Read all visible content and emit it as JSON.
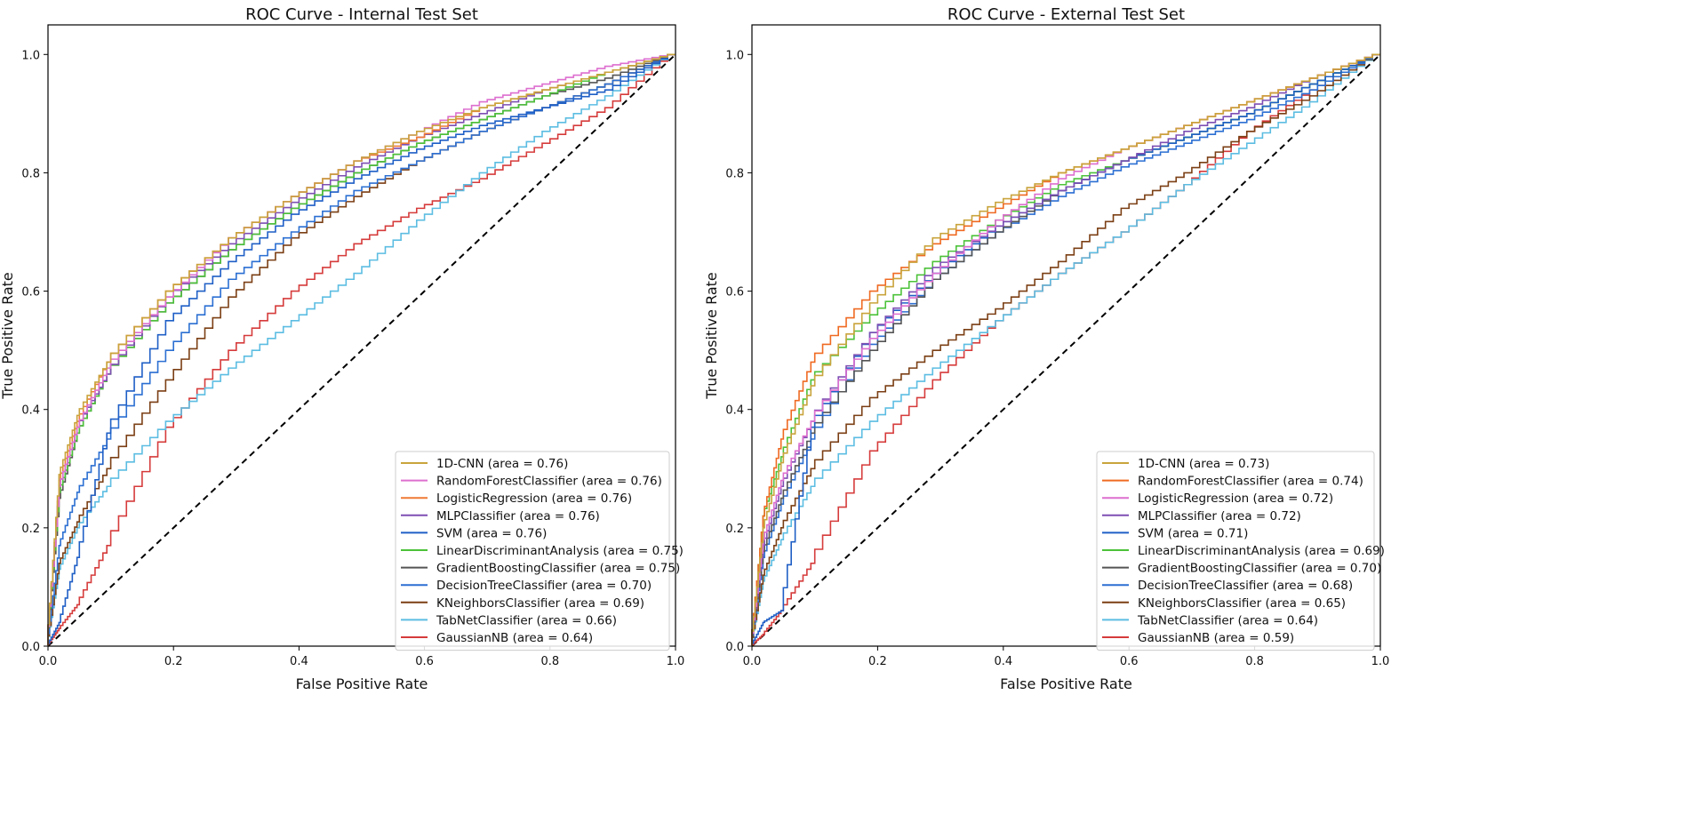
{
  "chart_data": [
    {
      "type": "line",
      "title": "ROC Curve - Internal Test Set",
      "xlabel": "False Positive Rate",
      "ylabel": "True Positive Rate",
      "xlim": [
        0,
        1
      ],
      "ylim": [
        0,
        1.05
      ],
      "xticks": [
        "0.0",
        "0.2",
        "0.4",
        "0.6",
        "0.8",
        "1.0"
      ],
      "yticks": [
        "0.0",
        "0.2",
        "0.4",
        "0.6",
        "0.8",
        "1.0"
      ],
      "legend_position": "lower-right",
      "x": [
        0,
        0.02,
        0.05,
        0.1,
        0.2,
        0.3,
        0.4,
        0.5,
        0.6,
        0.7,
        0.8,
        0.9,
        1
      ],
      "series": [
        {
          "name": "1D-CNN (area = 0.76)",
          "color": "#c9a43c",
          "values": [
            0,
            0.29,
            0.39,
            0.48,
            0.6,
            0.69,
            0.76,
            0.82,
            0.87,
            0.91,
            0.94,
            0.97,
            1
          ]
        },
        {
          "name": "RandomForestClassifier (area = 0.76)",
          "color": "#dd6fcf",
          "values": [
            0,
            0.27,
            0.37,
            0.47,
            0.59,
            0.69,
            0.76,
            0.82,
            0.87,
            0.92,
            0.95,
            0.98,
            1
          ]
        },
        {
          "name": "LogisticRegression (area = 0.76)",
          "color": "#ef7a35",
          "values": [
            0,
            0.28,
            0.38,
            0.48,
            0.6,
            0.69,
            0.76,
            0.82,
            0.86,
            0.91,
            0.94,
            0.97,
            1
          ]
        },
        {
          "name": "MLPClassifier (area = 0.76)",
          "color": "#7d4fb3",
          "values": [
            0,
            0.27,
            0.37,
            0.46,
            0.59,
            0.68,
            0.75,
            0.81,
            0.86,
            0.9,
            0.94,
            0.97,
            1
          ]
        },
        {
          "name": "SVM (area = 0.76)",
          "color": "#1f5fc6",
          "values": [
            0,
            0.04,
            0.15,
            0.36,
            0.55,
            0.65,
            0.73,
            0.79,
            0.84,
            0.88,
            0.91,
            0.94,
            1
          ]
        },
        {
          "name": "LinearDiscriminantAnalysis (area = 0.75)",
          "color": "#4cc23a",
          "values": [
            0,
            0.26,
            0.36,
            0.46,
            0.58,
            0.67,
            0.74,
            0.8,
            0.85,
            0.89,
            0.93,
            0.97,
            1
          ]
        },
        {
          "name": "GradientBoostingClassifier (area = 0.75)",
          "color": "#555555",
          "values": [
            0,
            0.25,
            0.36,
            0.46,
            0.58,
            0.67,
            0.74,
            0.8,
            0.85,
            0.89,
            0.93,
            0.96,
            1
          ]
        },
        {
          "name": "DecisionTreeClassifier (area = 0.70)",
          "color": "#2b6fd2",
          "values": [
            0,
            0.17,
            0.26,
            0.35,
            0.5,
            0.62,
            0.7,
            0.77,
            0.82,
            0.87,
            0.91,
            0.95,
            1
          ]
        },
        {
          "name": "KNeighborsClassifier (area = 0.69)",
          "color": "#7b3f14",
          "values": [
            0,
            0.14,
            0.21,
            0.3,
            0.45,
            0.59,
            0.69,
            0.76,
            0.82,
            0.87,
            0.91,
            0.95,
            1
          ]
        },
        {
          "name": "TabNetClassifier (area = 0.66)",
          "color": "#5cbde2",
          "values": [
            0,
            0.13,
            0.2,
            0.27,
            0.38,
            0.47,
            0.55,
            0.63,
            0.72,
            0.8,
            0.87,
            0.93,
            1
          ]
        },
        {
          "name": "GaussianNB (area = 0.64)",
          "color": "#d63b3b",
          "values": [
            0,
            0.03,
            0.07,
            0.17,
            0.37,
            0.5,
            0.6,
            0.68,
            0.74,
            0.79,
            0.85,
            0.91,
            1
          ]
        }
      ]
    },
    {
      "type": "line",
      "title": "ROC Curve - External Test Set",
      "xlabel": "False Positive Rate",
      "ylabel": "True Positive Rate",
      "xlim": [
        0,
        1
      ],
      "ylim": [
        0,
        1.05
      ],
      "xticks": [
        "0.0",
        "0.2",
        "0.4",
        "0.6",
        "0.8",
        "1.0"
      ],
      "yticks": [
        "0.0",
        "0.2",
        "0.4",
        "0.6",
        "0.8",
        "1.0"
      ],
      "legend_position": "lower-right",
      "x": [
        0,
        0.02,
        0.05,
        0.1,
        0.2,
        0.3,
        0.4,
        0.5,
        0.6,
        0.7,
        0.8,
        0.9,
        1
      ],
      "series": [
        {
          "name": "1D-CNN (area = 0.73)",
          "color": "#c9a43c",
          "values": [
            0,
            0.2,
            0.31,
            0.44,
            0.58,
            0.69,
            0.75,
            0.8,
            0.84,
            0.88,
            0.92,
            0.96,
            1
          ]
        },
        {
          "name": "RandomForestClassifier (area = 0.74)",
          "color": "#ef6a22",
          "values": [
            0,
            0.22,
            0.35,
            0.48,
            0.6,
            0.68,
            0.74,
            0.8,
            0.84,
            0.88,
            0.92,
            0.96,
            1
          ]
        },
        {
          "name": "LogisticRegression (area = 0.72)",
          "color": "#dd6fcf",
          "values": [
            0,
            0.18,
            0.28,
            0.38,
            0.52,
            0.63,
            0.72,
            0.79,
            0.84,
            0.88,
            0.92,
            0.96,
            1
          ]
        },
        {
          "name": "MLPClassifier (area = 0.72)",
          "color": "#7d4fb3",
          "values": [
            0,
            0.17,
            0.27,
            0.38,
            0.53,
            0.64,
            0.71,
            0.77,
            0.82,
            0.87,
            0.91,
            0.96,
            1
          ]
        },
        {
          "name": "SVM (area = 0.71)",
          "color": "#1f5fc6",
          "values": [
            0,
            0.04,
            0.06,
            0.37,
            0.53,
            0.63,
            0.71,
            0.77,
            0.82,
            0.86,
            0.9,
            0.95,
            1
          ]
        },
        {
          "name": "LinearDiscriminantAnalysis (area = 0.69)",
          "color": "#4cc23a",
          "values": [
            0,
            0.22,
            0.32,
            0.45,
            0.56,
            0.65,
            0.72,
            0.78,
            0.82,
            0.86,
            0.9,
            0.95,
            1
          ]
        },
        {
          "name": "GradientBoostingClassifier (area = 0.70)",
          "color": "#555555",
          "values": [
            0,
            0.16,
            0.25,
            0.36,
            0.5,
            0.62,
            0.7,
            0.77,
            0.82,
            0.86,
            0.9,
            0.95,
            1
          ]
        },
        {
          "name": "DecisionTreeClassifier (area = 0.68)",
          "color": "#2b6fd2",
          "values": [
            0,
            0.15,
            0.24,
            0.35,
            0.51,
            0.62,
            0.7,
            0.76,
            0.81,
            0.85,
            0.89,
            0.94,
            1
          ]
        },
        {
          "name": "KNeighborsClassifier (area = 0.65)",
          "color": "#7b3f14",
          "values": [
            0,
            0.12,
            0.2,
            0.3,
            0.42,
            0.5,
            0.57,
            0.65,
            0.74,
            0.8,
            0.87,
            0.93,
            1
          ]
        },
        {
          "name": "TabNetClassifier (area = 0.64)",
          "color": "#5cbde2",
          "values": [
            0,
            0.11,
            0.18,
            0.27,
            0.38,
            0.47,
            0.55,
            0.63,
            0.7,
            0.78,
            0.85,
            0.92,
            1
          ]
        },
        {
          "name": "GaussianNB (area = 0.59)",
          "color": "#d63b3b",
          "values": [
            0,
            0.02,
            0.06,
            0.14,
            0.33,
            0.45,
            0.55,
            0.63,
            0.7,
            0.78,
            0.87,
            0.94,
            1
          ]
        }
      ]
    }
  ]
}
